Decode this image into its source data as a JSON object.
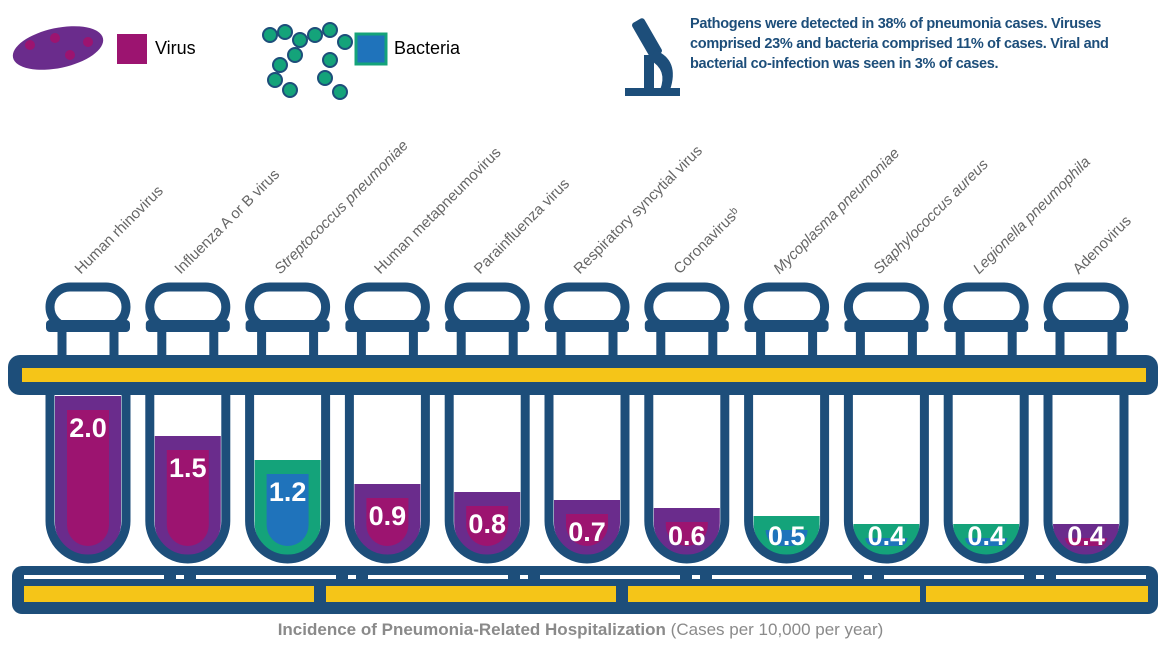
{
  "chart_data": {
    "type": "bar",
    "note": "Pathogens were detected in 38% of pneumonia cases. Viruses comprised 23% and bacteria comprised 11% of cases. Viral and bacterial co-infection was seen in 3% of cases.",
    "xlabel": "Incidence of Pneumonia-Related Hospitalization",
    "xlabel_unit": "(Cases per 10,000 per year)",
    "categories": [
      "Human rhinovirus",
      "Influenza A or B virus",
      "Streptococcus pneumoniae",
      "Human metapneumovirus",
      "Parainfluenza virus",
      "Respiratory syncytial virus",
      "Coronavirusᵇ",
      "Mycoplasma pneumoniae",
      "Staphylococcus aureus",
      "Legionella pneumophila",
      "Adenovirus"
    ],
    "series": [
      {
        "name": "Virus",
        "color": "#6a2c8c",
        "inner_color": "#9c1470",
        "values": [
          2.0,
          1.5,
          null,
          0.9,
          0.8,
          0.7,
          0.6,
          null,
          null,
          null,
          0.4
        ],
        "value_labels": [
          "2.0",
          "1.5",
          null,
          "0.9",
          "0.8",
          "0.7",
          "0.6",
          null,
          null,
          null,
          "0.4"
        ]
      },
      {
        "name": "Bacteria",
        "color": "#14a37a",
        "inner_color": "#1f73bb",
        "values": [
          null,
          null,
          1.2,
          null,
          null,
          null,
          null,
          0.5,
          0.4,
          0.4,
          null
        ],
        "value_labels": [
          null,
          null,
          "1.2",
          null,
          null,
          null,
          null,
          "0.5",
          "0.4",
          "0.4",
          null
        ]
      }
    ]
  }
}
